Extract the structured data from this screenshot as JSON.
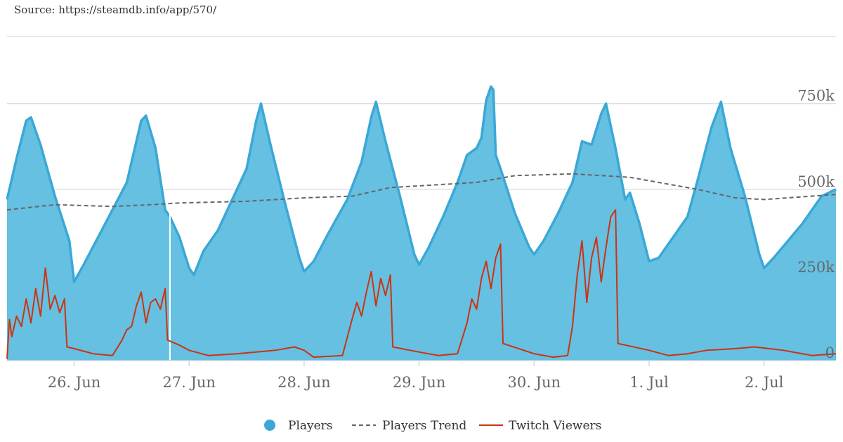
{
  "source_text": "Source: https://steamdb.info/app/570/",
  "colors": {
    "players_fill": "#65c0e2",
    "players_stroke": "#3aa8d6",
    "trend": "#666666",
    "twitch": "#cc3311",
    "grid": "#e0e0e0",
    "axis_text": "#666666",
    "marker": "#ffffff"
  },
  "chart_data": {
    "type": "area",
    "x_unit": "date",
    "x_range": [
      "2024-06-25T10:00",
      "2024-07-02T15:00"
    ],
    "y_range": [
      0,
      950000
    ],
    "y_ticks": [
      {
        "value": 0,
        "label": "0"
      },
      {
        "value": 250000,
        "label": "250k"
      },
      {
        "value": 500000,
        "label": "500k"
      },
      {
        "value": 750000,
        "label": "750k"
      }
    ],
    "x_ticks": [
      {
        "value": "2024-06-26T00:00",
        "label": "26. Jun"
      },
      {
        "value": "2024-06-27T00:00",
        "label": "27. Jun"
      },
      {
        "value": "2024-06-28T00:00",
        "label": "28. Jun"
      },
      {
        "value": "2024-06-29T00:00",
        "label": "29. Jun"
      },
      {
        "value": "2024-06-30T00:00",
        "label": "30. Jun"
      },
      {
        "value": "2024-07-01T00:00",
        "label": "1. Jul"
      },
      {
        "value": "2024-07-02T00:00",
        "label": "2. Jul"
      }
    ],
    "grid": true,
    "legend_position": "bottom",
    "marker_line_x": "2024-06-26T20:00",
    "series": [
      {
        "name": "Players",
        "style": "area",
        "points": [
          [
            "2024-06-25T10:00",
            470000
          ],
          [
            "2024-06-25T12:00",
            590000
          ],
          [
            "2024-06-25T14:00",
            700000
          ],
          [
            "2024-06-25T15:00",
            710000
          ],
          [
            "2024-06-25T17:00",
            630000
          ],
          [
            "2024-06-25T20:00",
            480000
          ],
          [
            "2024-06-25T23:00",
            350000
          ],
          [
            "2024-06-26T00:00",
            230000
          ],
          [
            "2024-06-26T02:00",
            280000
          ],
          [
            "2024-06-26T05:00",
            360000
          ],
          [
            "2024-06-26T08:00",
            440000
          ],
          [
            "2024-06-26T11:00",
            520000
          ],
          [
            "2024-06-26T14:00",
            700000
          ],
          [
            "2024-06-26T15:00",
            715000
          ],
          [
            "2024-06-26T17:00",
            620000
          ],
          [
            "2024-06-26T19:00",
            440000
          ],
          [
            "2024-06-26T20:00",
            420000
          ],
          [
            "2024-06-26T22:00",
            360000
          ],
          [
            "2024-06-27T00:00",
            270000
          ],
          [
            "2024-06-27T01:00",
            250000
          ],
          [
            "2024-06-27T03:00",
            320000
          ],
          [
            "2024-06-27T06:00",
            380000
          ],
          [
            "2024-06-27T09:00",
            470000
          ],
          [
            "2024-06-27T12:00",
            560000
          ],
          [
            "2024-06-27T14:00",
            700000
          ],
          [
            "2024-06-27T15:00",
            750000
          ],
          [
            "2024-06-27T17:00",
            630000
          ],
          [
            "2024-06-27T20:00",
            460000
          ],
          [
            "2024-06-27T23:00",
            300000
          ],
          [
            "2024-06-28T00:00",
            260000
          ],
          [
            "2024-06-28T02:00",
            290000
          ],
          [
            "2024-06-28T05:00",
            370000
          ],
          [
            "2024-06-28T09:00",
            470000
          ],
          [
            "2024-06-28T12:00",
            580000
          ],
          [
            "2024-06-28T14:00",
            710000
          ],
          [
            "2024-06-28T15:00",
            755000
          ],
          [
            "2024-06-28T17:00",
            640000
          ],
          [
            "2024-06-28T20:00",
            480000
          ],
          [
            "2024-06-28T23:00",
            310000
          ],
          [
            "2024-06-29T00:00",
            280000
          ],
          [
            "2024-06-29T02:00",
            330000
          ],
          [
            "2024-06-29T05:00",
            420000
          ],
          [
            "2024-06-29T08:00",
            520000
          ],
          [
            "2024-06-29T10:00",
            600000
          ],
          [
            "2024-06-29T12:00",
            620000
          ],
          [
            "2024-06-29T13:00",
            650000
          ],
          [
            "2024-06-29T14:00",
            760000
          ],
          [
            "2024-06-29T15:00",
            800000
          ],
          [
            "2024-06-29T15:30",
            790000
          ],
          [
            "2024-06-29T16:00",
            600000
          ],
          [
            "2024-06-29T17:00",
            560000
          ],
          [
            "2024-06-29T20:00",
            430000
          ],
          [
            "2024-06-29T23:00",
            330000
          ],
          [
            "2024-06-30T00:00",
            310000
          ],
          [
            "2024-06-30T02:00",
            350000
          ],
          [
            "2024-06-30T05:00",
            430000
          ],
          [
            "2024-06-30T08:00",
            520000
          ],
          [
            "2024-06-30T10:00",
            640000
          ],
          [
            "2024-06-30T12:00",
            630000
          ],
          [
            "2024-06-30T14:00",
            720000
          ],
          [
            "2024-06-30T15:00",
            750000
          ],
          [
            "2024-06-30T17:00",
            620000
          ],
          [
            "2024-06-30T19:00",
            470000
          ],
          [
            "2024-06-30T20:00",
            490000
          ],
          [
            "2024-06-30T22:00",
            400000
          ],
          [
            "2024-07-01T00:00",
            290000
          ],
          [
            "2024-07-01T02:00",
            300000
          ],
          [
            "2024-07-01T05:00",
            360000
          ],
          [
            "2024-07-01T08:00",
            420000
          ],
          [
            "2024-07-01T10:00",
            520000
          ],
          [
            "2024-07-01T13:00",
            680000
          ],
          [
            "2024-07-01T15:00",
            755000
          ],
          [
            "2024-07-01T17:00",
            620000
          ],
          [
            "2024-07-01T20:00",
            480000
          ],
          [
            "2024-07-01T23:00",
            310000
          ],
          [
            "2024-07-02T00:00",
            270000
          ],
          [
            "2024-07-02T02:00",
            300000
          ],
          [
            "2024-07-02T05:00",
            350000
          ],
          [
            "2024-07-02T08:00",
            400000
          ],
          [
            "2024-07-02T12:00",
            480000
          ],
          [
            "2024-07-02T15:00",
            500000
          ]
        ]
      },
      {
        "name": "Players Trend",
        "style": "dashed",
        "points": [
          [
            "2024-06-25T10:00",
            440000
          ],
          [
            "2024-06-25T20:00",
            455000
          ],
          [
            "2024-06-26T08:00",
            450000
          ],
          [
            "2024-06-26T16:00",
            455000
          ],
          [
            "2024-06-26T22:00",
            460000
          ],
          [
            "2024-06-27T12:00",
            465000
          ],
          [
            "2024-06-28T00:00",
            475000
          ],
          [
            "2024-06-28T10:00",
            480000
          ],
          [
            "2024-06-28T18:00",
            505000
          ],
          [
            "2024-06-29T00:00",
            510000
          ],
          [
            "2024-06-29T12:00",
            520000
          ],
          [
            "2024-06-29T20:00",
            540000
          ],
          [
            "2024-06-30T08:00",
            545000
          ],
          [
            "2024-06-30T20:00",
            535000
          ],
          [
            "2024-07-01T00:00",
            525000
          ],
          [
            "2024-07-01T10:00",
            500000
          ],
          [
            "2024-07-01T18:00",
            475000
          ],
          [
            "2024-07-02T00:00",
            470000
          ],
          [
            "2024-07-02T15:00",
            485000
          ]
        ]
      },
      {
        "name": "Twitch Viewers",
        "style": "line",
        "points": [
          [
            "2024-06-25T10:00",
            5000
          ],
          [
            "2024-06-25T10:30",
            120000
          ],
          [
            "2024-06-25T11:00",
            70000
          ],
          [
            "2024-06-25T12:00",
            130000
          ],
          [
            "2024-06-25T13:00",
            100000
          ],
          [
            "2024-06-25T14:00",
            180000
          ],
          [
            "2024-06-25T15:00",
            110000
          ],
          [
            "2024-06-25T16:00",
            210000
          ],
          [
            "2024-06-25T17:00",
            130000
          ],
          [
            "2024-06-25T18:00",
            270000
          ],
          [
            "2024-06-25T19:00",
            150000
          ],
          [
            "2024-06-25T20:00",
            190000
          ],
          [
            "2024-06-25T21:00",
            140000
          ],
          [
            "2024-06-25T22:00",
            180000
          ],
          [
            "2024-06-25T22:30",
            40000
          ],
          [
            "2024-06-26T00:00",
            35000
          ],
          [
            "2024-06-26T04:00",
            20000
          ],
          [
            "2024-06-26T08:00",
            15000
          ],
          [
            "2024-06-26T10:00",
            60000
          ],
          [
            "2024-06-26T11:00",
            90000
          ],
          [
            "2024-06-26T12:00",
            100000
          ],
          [
            "2024-06-26T13:00",
            160000
          ],
          [
            "2024-06-26T14:00",
            200000
          ],
          [
            "2024-06-26T15:00",
            110000
          ],
          [
            "2024-06-26T16:00",
            170000
          ],
          [
            "2024-06-26T17:00",
            180000
          ],
          [
            "2024-06-26T18:00",
            150000
          ],
          [
            "2024-06-26T19:00",
            210000
          ],
          [
            "2024-06-26T19:30",
            60000
          ],
          [
            "2024-06-26T22:00",
            45000
          ],
          [
            "2024-06-27T00:00",
            30000
          ],
          [
            "2024-06-27T04:00",
            15000
          ],
          [
            "2024-06-27T10:00",
            20000
          ],
          [
            "2024-06-27T14:00",
            25000
          ],
          [
            "2024-06-27T18:00",
            30000
          ],
          [
            "2024-06-27T22:00",
            40000
          ],
          [
            "2024-06-28T00:00",
            30000
          ],
          [
            "2024-06-28T02:00",
            10000
          ],
          [
            "2024-06-28T08:00",
            15000
          ],
          [
            "2024-06-28T10:00",
            120000
          ],
          [
            "2024-06-28T11:00",
            170000
          ],
          [
            "2024-06-28T12:00",
            130000
          ],
          [
            "2024-06-28T13:00",
            200000
          ],
          [
            "2024-06-28T14:00",
            260000
          ],
          [
            "2024-06-28T15:00",
            160000
          ],
          [
            "2024-06-28T16:00",
            240000
          ],
          [
            "2024-06-28T17:00",
            190000
          ],
          [
            "2024-06-28T18:00",
            250000
          ],
          [
            "2024-06-28T18:30",
            40000
          ],
          [
            "2024-06-29T00:00",
            25000
          ],
          [
            "2024-06-29T04:00",
            15000
          ],
          [
            "2024-06-29T08:00",
            20000
          ],
          [
            "2024-06-29T10:00",
            110000
          ],
          [
            "2024-06-29T11:00",
            180000
          ],
          [
            "2024-06-29T12:00",
            150000
          ],
          [
            "2024-06-29T13:00",
            240000
          ],
          [
            "2024-06-29T14:00",
            290000
          ],
          [
            "2024-06-29T15:00",
            210000
          ],
          [
            "2024-06-29T16:00",
            300000
          ],
          [
            "2024-06-29T17:00",
            340000
          ],
          [
            "2024-06-29T17:30",
            50000
          ],
          [
            "2024-06-30T00:00",
            20000
          ],
          [
            "2024-06-30T04:00",
            10000
          ],
          [
            "2024-06-30T07:00",
            15000
          ],
          [
            "2024-06-30T08:00",
            100000
          ],
          [
            "2024-06-30T09:00",
            250000
          ],
          [
            "2024-06-30T10:00",
            350000
          ],
          [
            "2024-06-30T11:00",
            170000
          ],
          [
            "2024-06-30T12:00",
            300000
          ],
          [
            "2024-06-30T13:00",
            360000
          ],
          [
            "2024-06-30T14:00",
            230000
          ],
          [
            "2024-06-30T15:00",
            330000
          ],
          [
            "2024-06-30T16:00",
            420000
          ],
          [
            "2024-06-30T17:00",
            440000
          ],
          [
            "2024-06-30T17:30",
            50000
          ],
          [
            "2024-07-01T00:00",
            30000
          ],
          [
            "2024-07-01T04:00",
            15000
          ],
          [
            "2024-07-01T08:00",
            20000
          ],
          [
            "2024-07-01T12:00",
            30000
          ],
          [
            "2024-07-01T18:00",
            35000
          ],
          [
            "2024-07-01T22:00",
            40000
          ],
          [
            "2024-07-02T04:00",
            30000
          ],
          [
            "2024-07-02T10:00",
            15000
          ],
          [
            "2024-07-02T15:00",
            20000
          ]
        ]
      }
    ]
  }
}
